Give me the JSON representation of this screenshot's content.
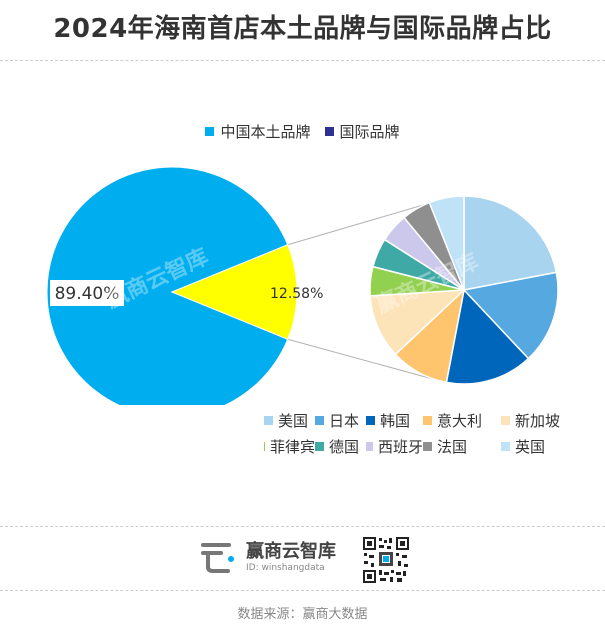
{
  "title": "2024年海南首店本土品牌与国际品牌占比",
  "source": "数据来源：赢商大数据",
  "brand": {
    "name": "赢商云智库",
    "id": "ID: winshangdata"
  },
  "colors": {
    "local": "#00aeef",
    "international": "#2e3192",
    "highlight": "#ffff00"
  },
  "chart_data": [
    {
      "type": "pie",
      "title": "",
      "series": [
        {
          "name": "中国本土品牌",
          "value": 89.4,
          "label": "89.40%",
          "color": "#00aeef"
        },
        {
          "name": "国际品牌",
          "value": 12.58,
          "label": "12.58%",
          "color": "#ffff00"
        }
      ],
      "legend": [
        "中国本土品牌",
        "国际品牌"
      ],
      "legend_colors": [
        "#00aeef",
        "#2e3192"
      ],
      "legend_position": "top"
    },
    {
      "type": "pie",
      "title": "",
      "categories": [
        "美国",
        "日本",
        "韩国",
        "意大利",
        "新加坡",
        "菲律宾",
        "德国",
        "西班牙",
        "法国",
        "英国"
      ],
      "values": [
        22,
        16,
        15,
        10,
        11,
        5,
        5,
        5,
        5,
        6
      ],
      "colors": [
        "#a9d4f0",
        "#56a8e0",
        "#0066bb",
        "#ffc56e",
        "#fde3b8",
        "#92d050",
        "#3fa9a6",
        "#cbc8ec",
        "#8f8f8f",
        "#c0e2f7"
      ],
      "legend_position": "bottom-right"
    }
  ]
}
